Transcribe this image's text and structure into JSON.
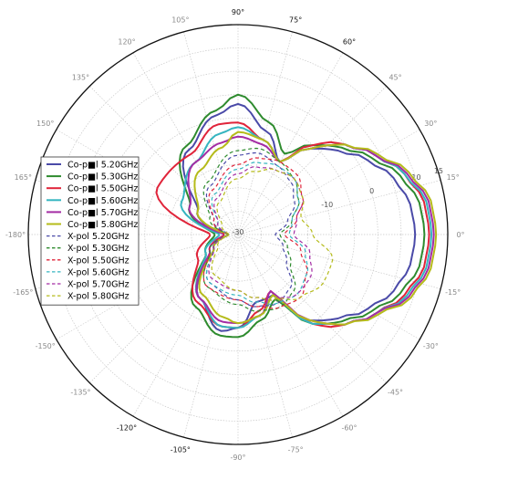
{
  "chart_data": {
    "type": "polar",
    "title": "",
    "angle_unit": "deg",
    "angle_ticks": [
      {
        "angle": 0,
        "label": "0°",
        "dark": false
      },
      {
        "angle": 15,
        "label": "15°",
        "dark": false
      },
      {
        "angle": 30,
        "label": "30°",
        "dark": false
      },
      {
        "angle": 45,
        "label": "45°",
        "dark": false
      },
      {
        "angle": 60,
        "label": "60°",
        "dark": true
      },
      {
        "angle": 75,
        "label": "75°",
        "dark": true
      },
      {
        "angle": 90,
        "label": "90°",
        "dark": true
      },
      {
        "angle": 105,
        "label": "105°",
        "dark": false
      },
      {
        "angle": 120,
        "label": "120°",
        "dark": false
      },
      {
        "angle": 135,
        "label": "135°",
        "dark": false
      },
      {
        "angle": 150,
        "label": "150°",
        "dark": false
      },
      {
        "angle": 165,
        "label": "165°",
        "dark": false
      },
      {
        "angle": 180,
        "label": "-180°",
        "dark": false
      },
      {
        "angle": -165,
        "label": "-165°",
        "dark": false
      },
      {
        "angle": -150,
        "label": "-150°",
        "dark": false
      },
      {
        "angle": -135,
        "label": "-135°",
        "dark": false
      },
      {
        "angle": -120,
        "label": "-120°",
        "dark": true
      },
      {
        "angle": -105,
        "label": "-105°",
        "dark": true
      },
      {
        "angle": -90,
        "label": "-90°",
        "dark": false
      },
      {
        "angle": -75,
        "label": "-75°",
        "dark": false
      },
      {
        "angle": -60,
        "label": "-60°",
        "dark": false
      },
      {
        "angle": -45,
        "label": "-45°",
        "dark": false
      },
      {
        "angle": -30,
        "label": "-30°",
        "dark": false
      },
      {
        "angle": -15,
        "label": "-15°",
        "dark": false
      }
    ],
    "radial_min": -30,
    "radial_max": 15,
    "radial_ticks": [
      -30,
      -20,
      -10,
      0,
      10,
      15
    ],
    "radial_tick_labels": [
      "-30",
      "",
      "-10",
      "0",
      "10",
      "15"
    ],
    "grid": true,
    "legend_position": "left",
    "series": [
      {
        "name": "Co-pol 5.20GHz",
        "display": "Co-p■l 5.20GHz",
        "color": "#4a4aa8",
        "dash": false,
        "theta": [
          -180,
          -150,
          -120,
          -100,
          -90,
          -75,
          -60,
          -50,
          -45,
          -40,
          -30,
          -20,
          -10,
          0,
          10,
          20,
          30,
          40,
          45,
          50,
          60,
          75,
          90,
          100,
          120,
          150,
          180
        ],
        "r": [
          -27,
          -24,
          -14,
          -9,
          -10,
          -15,
          -15,
          -6,
          -4,
          -2,
          2,
          5.5,
          7.5,
          8,
          7.5,
          5.5,
          2,
          -2,
          -4,
          -6,
          -12,
          -7,
          -2,
          -4,
          -9,
          -20,
          -27
        ]
      },
      {
        "name": "Co-pol 5.30GHz",
        "display": "Co-p■l 5.30GHz",
        "color": "#2e8b2e",
        "dash": false,
        "theta": [
          -180,
          -150,
          -120,
          -100,
          -90,
          -75,
          -60,
          -50,
          -45,
          -40,
          -30,
          -20,
          -10,
          0,
          10,
          20,
          30,
          40,
          45,
          50,
          60,
          75,
          90,
          100,
          120,
          150,
          180
        ],
        "r": [
          -25,
          -22,
          -12,
          -8,
          -8,
          -11,
          -14,
          -5,
          -3,
          -1,
          3,
          7,
          9.5,
          10,
          9.5,
          7,
          3,
          -1,
          -3,
          -5,
          -10,
          -5,
          0,
          -3,
          -8,
          -18,
          -25
        ]
      },
      {
        "name": "Co-pol 5.50GHz",
        "display": "Co-p■l 5.50GHz",
        "color": "#e0243a",
        "dash": false,
        "theta": [
          -180,
          -150,
          -120,
          -100,
          -90,
          -75,
          -60,
          -50,
          -45,
          -40,
          -30,
          -20,
          -10,
          0,
          10,
          20,
          30,
          40,
          45,
          50,
          60,
          75,
          90,
          100,
          120,
          150,
          180
        ],
        "r": [
          -24,
          -20,
          -13,
          -10,
          -10,
          -13,
          -16,
          -5,
          -2,
          0,
          4,
          8,
          10.5,
          11,
          10.5,
          8,
          4,
          0,
          -2,
          -5,
          -12,
          -9,
          -6,
          -6,
          -10,
          -10,
          -24
        ]
      },
      {
        "name": "Co-pol 5.60GHz",
        "display": "Co-p■l 5.60GHz",
        "color": "#35b5c0",
        "dash": false,
        "theta": [
          -180,
          -150,
          -120,
          -100,
          -90,
          -75,
          -60,
          -50,
          -45,
          -40,
          -30,
          -20,
          -10,
          0,
          10,
          20,
          30,
          40,
          45,
          50,
          60,
          75,
          90,
          100,
          120,
          150,
          180
        ],
        "r": [
          -26,
          -22,
          -14,
          -10,
          -10,
          -12,
          -15,
          -5,
          -3,
          0,
          4,
          8.5,
          11,
          11.5,
          11,
          8,
          4,
          0,
          -3,
          -6,
          -12,
          -9,
          -7,
          -8,
          -12,
          -16,
          -26
        ]
      },
      {
        "name": "Co-pol 5.70GHz",
        "display": "Co-p■l 5.70GHz",
        "color": "#a42ca4",
        "dash": false,
        "theta": [
          -180,
          -150,
          -120,
          -100,
          -90,
          -75,
          -60,
          -50,
          -45,
          -40,
          -30,
          -20,
          -10,
          0,
          10,
          20,
          30,
          40,
          45,
          50,
          60,
          75,
          90,
          100,
          120,
          150,
          180
        ],
        "r": [
          -27,
          -23,
          -14,
          -11,
          -11,
          -12,
          -16,
          -6,
          -3,
          0,
          4,
          9,
          11.5,
          12,
          11.5,
          8.5,
          4,
          0,
          -3,
          -6,
          -12,
          -10,
          -9,
          -10,
          -12,
          -18,
          -27
        ]
      },
      {
        "name": "Co-pol 5.80GHz",
        "display": "Co-p■l 5.80GHz",
        "color": "#b5bb1a",
        "dash": false,
        "theta": [
          -180,
          -150,
          -120,
          -100,
          -90,
          -75,
          -60,
          -50,
          -45,
          -40,
          -30,
          -20,
          -10,
          0,
          10,
          20,
          30,
          40,
          45,
          50,
          60,
          75,
          90,
          100,
          120,
          150,
          180
        ],
        "r": [
          -28,
          -24,
          -15,
          -12,
          -11,
          -12,
          -15,
          -6,
          -3,
          0,
          4.5,
          9.5,
          12,
          12.5,
          12,
          9,
          4.5,
          0,
          -3,
          -6,
          -12,
          -9,
          -8,
          -11,
          -14,
          -20,
          -28
        ]
      },
      {
        "name": "X-pol 5.20GHz",
        "display": "X-pol 5.20GHz",
        "color": "#4a4aa8",
        "dash": true,
        "theta": [
          -180,
          -150,
          -120,
          -90,
          -75,
          -60,
          -45,
          -30,
          -15,
          0,
          15,
          30,
          45,
          60,
          75,
          90,
          120,
          150,
          180
        ],
        "r": [
          -28,
          -24,
          -18,
          -16,
          -14,
          -13,
          -14,
          -18,
          -20,
          -22,
          -19,
          -16,
          -14,
          -13,
          -12,
          -13,
          -18,
          -24,
          -28
        ]
      },
      {
        "name": "X-pol 5.30GHz",
        "display": "X-pol 5.30GHz",
        "color": "#2e8b2e",
        "dash": true,
        "theta": [
          -180,
          -150,
          -120,
          -90,
          -75,
          -60,
          -45,
          -30,
          -15,
          0,
          15,
          30,
          45,
          60,
          75,
          90,
          120,
          150,
          180
        ],
        "r": [
          -28,
          -23,
          -17,
          -15,
          -13,
          -12,
          -13,
          -17,
          -19,
          -21,
          -18,
          -15,
          -13,
          -12,
          -11,
          -12,
          -17,
          -23,
          -28
        ]
      },
      {
        "name": "X-pol 5.50GHz",
        "display": "X-pol 5.50GHz",
        "color": "#e0243a",
        "dash": true,
        "theta": [
          -180,
          -150,
          -120,
          -90,
          -75,
          -60,
          -45,
          -30,
          -15,
          0,
          15,
          30,
          45,
          60,
          75,
          90,
          120,
          150,
          180
        ],
        "r": [
          -27,
          -23,
          -17,
          -16,
          -14,
          -12,
          -11,
          -13,
          -16,
          -20,
          -17,
          -14,
          -12,
          -12,
          -13,
          -15,
          -19,
          -24,
          -27
        ]
      },
      {
        "name": "X-pol 5.60GHz",
        "display": "X-pol 5.60GHz",
        "color": "#35b5c0",
        "dash": true,
        "theta": [
          -180,
          -150,
          -120,
          -90,
          -75,
          -60,
          -45,
          -30,
          -15,
          0,
          15,
          30,
          45,
          60,
          75,
          90,
          120,
          150,
          180
        ],
        "r": [
          -28,
          -24,
          -18,
          -17,
          -15,
          -13,
          -12,
          -13,
          -15,
          -19,
          -18,
          -15,
          -13,
          -13,
          -14,
          -16,
          -20,
          -25,
          -28
        ]
      },
      {
        "name": "X-pol 5.70GHz",
        "display": "X-pol 5.70GHz",
        "color": "#a42ca4",
        "dash": true,
        "theta": [
          -180,
          -150,
          -120,
          -90,
          -75,
          -60,
          -45,
          -30,
          -15,
          0,
          15,
          30,
          45,
          60,
          75,
          90,
          120,
          150,
          180
        ],
        "r": [
          -28,
          -24,
          -19,
          -18,
          -16,
          -14,
          -12,
          -12,
          -14,
          -18,
          -17,
          -14,
          -13,
          -14,
          -15,
          -17,
          -21,
          -25,
          -28
        ]
      },
      {
        "name": "X-pol 5.80GHz",
        "display": "X-pol 5.80GHz",
        "color": "#b5bb1a",
        "dash": true,
        "theta": [
          -180,
          -150,
          -120,
          -90,
          -75,
          -60,
          -45,
          -30,
          -15,
          0,
          15,
          30,
          45,
          60,
          75,
          90,
          120,
          150,
          180
        ],
        "r": [
          -28,
          -25,
          -20,
          -18,
          -16,
          -14,
          -11,
          -9,
          -9,
          -14,
          -16,
          -14,
          -13,
          -14,
          -16,
          -18,
          -22,
          -26,
          -28
        ]
      }
    ]
  }
}
